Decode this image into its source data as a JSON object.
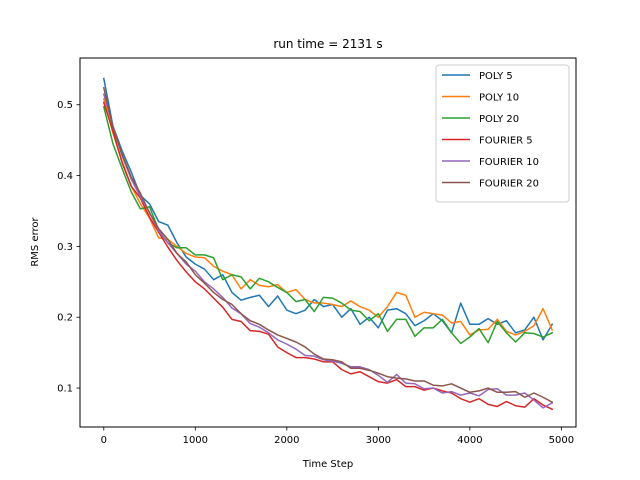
{
  "chart_data": {
    "type": "line",
    "title": "run time = 2131 s",
    "xlabel": "Time Step",
    "ylabel": "RMS error",
    "xlim": [
      -260,
      5160
    ],
    "ylim": [
      0.045,
      0.566
    ],
    "xticks": [
      0,
      1000,
      2000,
      3000,
      4000,
      5000
    ],
    "yticks": [
      0.1,
      0.2,
      0.3,
      0.4,
      0.5
    ],
    "ytick_labels": [
      "0.1",
      "0.2",
      "0.3",
      "0.4",
      "0.5"
    ],
    "grid": false,
    "legend_position": "top-right",
    "x": [
      0,
      100,
      200,
      300,
      400,
      500,
      600,
      700,
      800,
      900,
      1000,
      1100,
      1200,
      1300,
      1400,
      1500,
      1600,
      1700,
      1800,
      1900,
      2000,
      2100,
      2200,
      2300,
      2400,
      2500,
      2600,
      2700,
      2800,
      2900,
      3000,
      3100,
      3200,
      3300,
      3400,
      3500,
      3600,
      3700,
      3800,
      3900,
      4000,
      4100,
      4200,
      4300,
      4400,
      4500,
      4600,
      4700,
      4800,
      4900
    ],
    "series": [
      {
        "name": "POLY 5",
        "color": "#1f77b4",
        "values": [
          0.537,
          0.47,
          0.435,
          0.405,
          0.372,
          0.36,
          0.335,
          0.33,
          0.305,
          0.285,
          0.275,
          0.268,
          0.253,
          0.26,
          0.235,
          0.224,
          0.228,
          0.231,
          0.215,
          0.23,
          0.21,
          0.205,
          0.21,
          0.225,
          0.215,
          0.218,
          0.2,
          0.212,
          0.19,
          0.2,
          0.185,
          0.21,
          0.212,
          0.205,
          0.188,
          0.195,
          0.205,
          0.195,
          0.178,
          0.22,
          0.19,
          0.19,
          0.198,
          0.19,
          0.195,
          0.178,
          0.182,
          0.2,
          0.168,
          0.19
        ]
      },
      {
        "name": "POLY 10",
        "color": "#ff7f0e",
        "values": [
          0.508,
          0.46,
          0.42,
          0.385,
          0.36,
          0.34,
          0.312,
          0.31,
          0.3,
          0.29,
          0.285,
          0.284,
          0.272,
          0.265,
          0.26,
          0.24,
          0.253,
          0.245,
          0.243,
          0.246,
          0.235,
          0.239,
          0.225,
          0.22,
          0.22,
          0.218,
          0.215,
          0.223,
          0.215,
          0.21,
          0.2,
          0.215,
          0.235,
          0.231,
          0.2,
          0.207,
          0.205,
          0.203,
          0.192,
          0.194,
          0.175,
          0.182,
          0.183,
          0.197,
          0.18,
          0.175,
          0.18,
          0.188,
          0.212,
          0.182
        ]
      },
      {
        "name": "POLY 20",
        "color": "#2ca02c",
        "values": [
          0.497,
          0.445,
          0.41,
          0.377,
          0.353,
          0.356,
          0.323,
          0.305,
          0.298,
          0.298,
          0.288,
          0.288,
          0.284,
          0.253,
          0.26,
          0.257,
          0.24,
          0.255,
          0.25,
          0.242,
          0.235,
          0.222,
          0.225,
          0.208,
          0.228,
          0.227,
          0.22,
          0.21,
          0.208,
          0.195,
          0.205,
          0.18,
          0.197,
          0.197,
          0.173,
          0.185,
          0.185,
          0.197,
          0.178,
          0.163,
          0.172,
          0.184,
          0.164,
          0.194,
          0.178,
          0.165,
          0.178,
          0.177,
          0.172,
          0.178
        ]
      },
      {
        "name": "FOURIER 5",
        "color": "#d62728",
        "values": [
          0.503,
          0.463,
          0.418,
          0.385,
          0.368,
          0.341,
          0.32,
          0.299,
          0.28,
          0.264,
          0.25,
          0.24,
          0.227,
          0.214,
          0.197,
          0.194,
          0.181,
          0.18,
          0.176,
          0.158,
          0.15,
          0.143,
          0.143,
          0.141,
          0.137,
          0.137,
          0.126,
          0.12,
          0.123,
          0.116,
          0.109,
          0.107,
          0.112,
          0.102,
          0.102,
          0.097,
          0.1,
          0.096,
          0.093,
          0.085,
          0.08,
          0.085,
          0.077,
          0.074,
          0.081,
          0.075,
          0.073,
          0.085,
          0.076,
          0.07
        ]
      },
      {
        "name": "FOURIER 10",
        "color": "#9467bd",
        "values": [
          0.515,
          0.47,
          0.428,
          0.395,
          0.37,
          0.348,
          0.322,
          0.305,
          0.29,
          0.275,
          0.265,
          0.25,
          0.24,
          0.228,
          0.213,
          0.205,
          0.191,
          0.186,
          0.178,
          0.168,
          0.162,
          0.155,
          0.146,
          0.145,
          0.14,
          0.138,
          0.135,
          0.13,
          0.13,
          0.126,
          0.118,
          0.108,
          0.119,
          0.107,
          0.106,
          0.099,
          0.1,
          0.093,
          0.095,
          0.09,
          0.093,
          0.089,
          0.098,
          0.099,
          0.09,
          0.09,
          0.093,
          0.083,
          0.072,
          0.079
        ]
      },
      {
        "name": "FOURIER 20",
        "color": "#8c564b",
        "values": [
          0.524,
          0.468,
          0.43,
          0.398,
          0.375,
          0.347,
          0.325,
          0.31,
          0.29,
          0.278,
          0.26,
          0.248,
          0.235,
          0.225,
          0.218,
          0.205,
          0.195,
          0.19,
          0.182,
          0.175,
          0.17,
          0.165,
          0.158,
          0.148,
          0.141,
          0.14,
          0.137,
          0.128,
          0.128,
          0.125,
          0.121,
          0.116,
          0.114,
          0.113,
          0.11,
          0.11,
          0.104,
          0.103,
          0.106,
          0.1,
          0.094,
          0.096,
          0.1,
          0.094,
          0.094,
          0.095,
          0.087,
          0.093,
          0.087,
          0.08
        ]
      }
    ]
  }
}
